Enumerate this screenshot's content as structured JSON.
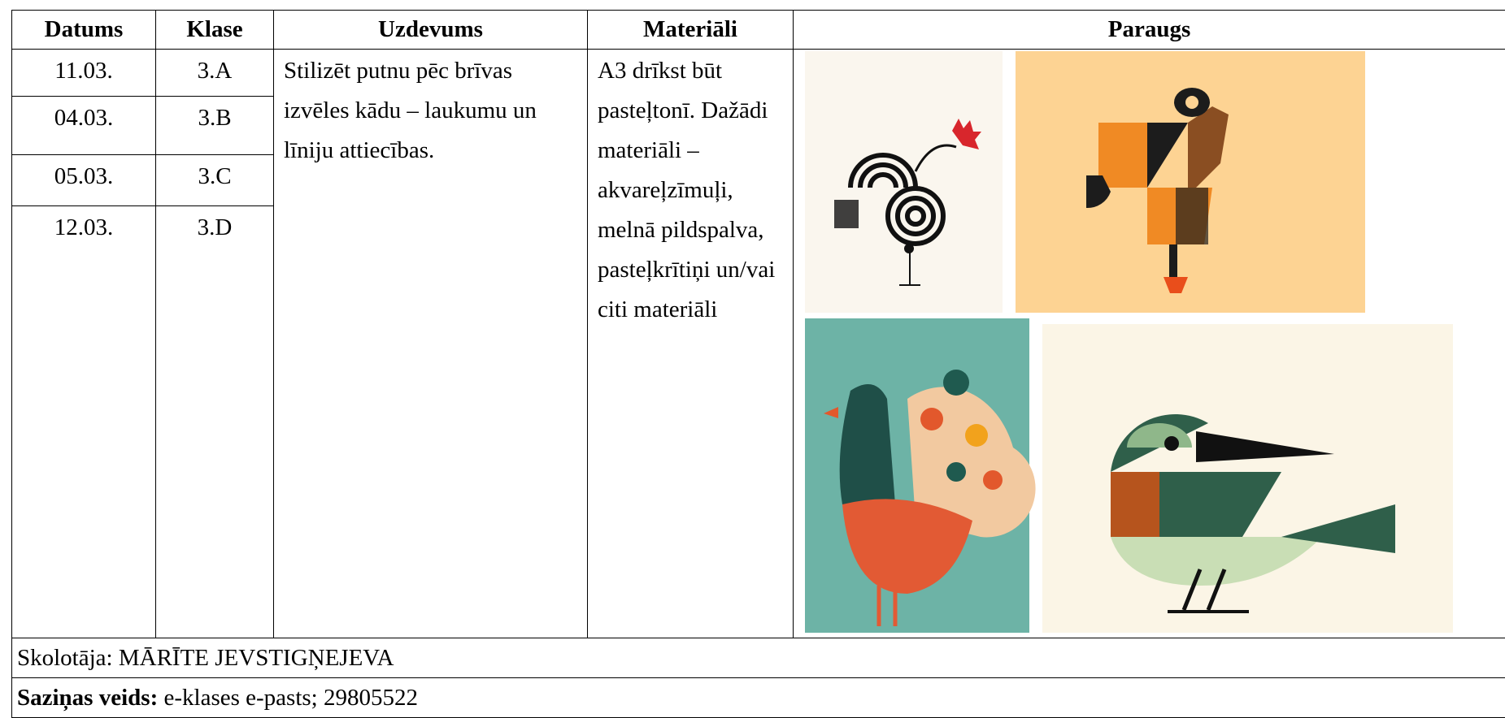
{
  "header": {
    "columns": [
      "Datums",
      "Klase",
      "Uzdevums",
      "Materiāli",
      "Paraugs"
    ]
  },
  "rows": [
    {
      "date": "11.03.",
      "class": "3.A"
    },
    {
      "date": "04.03.",
      "class": "3.B"
    },
    {
      "date": "05.03.",
      "class": "3.C"
    },
    {
      "date": "12.03.",
      "class": "3.D"
    }
  ],
  "task": "Stilizēt putnu pēc brīvas izvēles kādu – laukumu un līniju attiecības.",
  "materials": "A3 drīkst būt pasteļtonī. Dažādi materiāli – akvareļzīmuļi, melnā pildspalva, pasteļkrītiņi un/vai citi materiāli",
  "footer": {
    "teacher": "Skolotāja: MĀRĪTE JEVSTIGŅEJEVA",
    "contact_label": "Saziņas veids:",
    "contact_value": "e-klases e-pasts; 29805522"
  }
}
